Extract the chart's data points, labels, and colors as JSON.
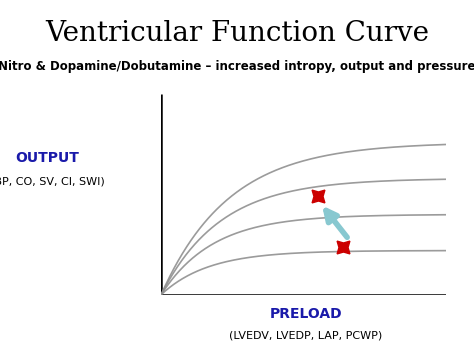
{
  "title": "Ventricular Function Curve",
  "subtitle": "Nitro & Dopamine/Dobutamine – increased intropy, output and pressure",
  "ylabel_main": "OUTPUT",
  "ylabel_sub": "(BP, CO, SV, CI, SWI)",
  "xlabel_main": "PRELOAD",
  "xlabel_sub": "(LVEDV, LVEDP, LAP, PCWP)",
  "background_color": "#ffffff",
  "subtitle_bg": "#c8e6e6",
  "curve_color": "#909090",
  "star_color": "#cc0000",
  "arrow_color": "#88c8d0",
  "title_fontsize": 20,
  "subtitle_fontsize": 8.5,
  "ylabel_main_fontsize": 10,
  "ylabel_sub_fontsize": 8,
  "xlabel_main_fontsize": 10,
  "xlabel_sub_fontsize": 8,
  "curve_params": [
    [
      2.2,
      0.6,
      0.0
    ],
    [
      4.0,
      0.55,
      0.0
    ],
    [
      5.8,
      0.48,
      0.0
    ],
    [
      7.6,
      0.42,
      0.0
    ]
  ]
}
